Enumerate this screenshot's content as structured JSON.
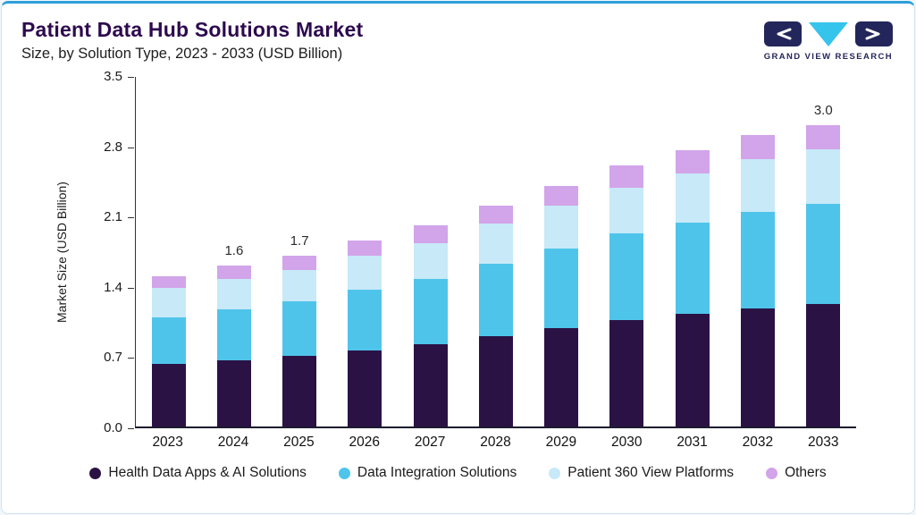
{
  "header": {
    "title": "Patient Data Hub Solutions Market",
    "subtitle": "Size, by Solution Type, 2023 - 2033 (USD Billion)",
    "logo_text": "GRAND VIEW RESEARCH"
  },
  "colors": {
    "accent_top_bar": "#2d9fd8",
    "title": "#2d0a4e",
    "logo_navy": "#23265a",
    "logo_cyan": "#35c4ec"
  },
  "chart_data": {
    "type": "bar",
    "stacked": true,
    "title": "Patient Data Hub Solutions Market Size, by Solution Type, 2023 - 2033 (USD Billion)",
    "xlabel": "",
    "ylabel": "Market Size (USD Billion)",
    "ylim": [
      0,
      3.5
    ],
    "ytick_labels": [
      "0.0",
      "0.7",
      "1.4",
      "2.1",
      "2.8",
      "3.5"
    ],
    "grid": false,
    "legend_position": "bottom",
    "categories": [
      "2023",
      "2024",
      "2025",
      "2026",
      "2027",
      "2028",
      "2029",
      "2030",
      "2031",
      "2032",
      "2033"
    ],
    "series": [
      {
        "name": "Health Data Apps & AI Solutions",
        "color": "#2b1245",
        "values": [
          0.62,
          0.66,
          0.7,
          0.76,
          0.82,
          0.9,
          0.98,
          1.06,
          1.12,
          1.18,
          1.22
        ]
      },
      {
        "name": "Data Integration Solutions",
        "color": "#4fc4ea",
        "values": [
          0.47,
          0.51,
          0.55,
          0.6,
          0.65,
          0.72,
          0.79,
          0.86,
          0.91,
          0.96,
          1.0
        ]
      },
      {
        "name": "Patient 360 View Platforms",
        "color": "#c7e9f8",
        "values": [
          0.29,
          0.3,
          0.31,
          0.34,
          0.36,
          0.4,
          0.43,
          0.46,
          0.49,
          0.52,
          0.54
        ]
      },
      {
        "name": "Others",
        "color": "#d2a4e9",
        "values": [
          0.12,
          0.13,
          0.14,
          0.15,
          0.17,
          0.18,
          0.2,
          0.22,
          0.23,
          0.24,
          0.24
        ]
      }
    ],
    "totals": [
      1.5,
      1.6,
      1.7,
      1.85,
      2.0,
      2.2,
      2.4,
      2.6,
      2.75,
      2.9,
      3.0
    ],
    "bar_labels": {
      "2024": "1.6",
      "2025": "1.7",
      "2033": "3.0"
    }
  }
}
